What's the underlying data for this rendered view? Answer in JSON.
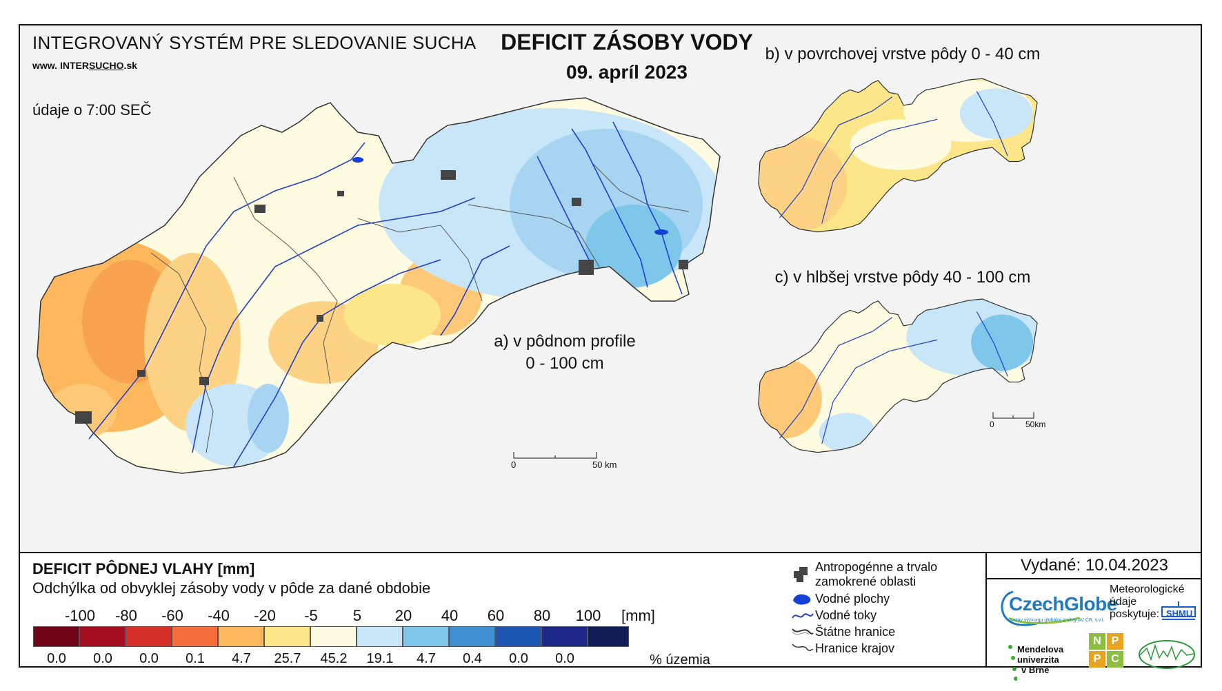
{
  "header": {
    "system_title": "INTEGROVANÝ SYSTÉM PRE SLEDOVANIE SUCHA",
    "website_prefix": "www. ",
    "website_inter": "INTER",
    "website_sucho": "SUCHO",
    "website_suffix": ".sk",
    "data_time": "údaje o 7:00 SEČ",
    "title": "DEFICIT ZÁSOBY VODY",
    "date": "09. apríl 2023"
  },
  "maps": {
    "a_label_line1": "a) v pôdnom profile",
    "a_label_line2": "0 - 100 cm",
    "b_label": "b) v povrchovej vrstve pôdy 0 - 40 cm",
    "c_label": "c) v hlbšej vrstve pôdy 40 - 100 cm",
    "scale_main": {
      "start": "0",
      "end": "50 km"
    },
    "scale_small": {
      "start": "0",
      "end": "50km"
    }
  },
  "legend": {
    "title": "DEFICIT PÔDNEJ VLAHY [mm]",
    "subtitle": "Odchýlka od obvyklej zásoby vody v pôde za dané obdobie",
    "bin_labels": [
      "-100",
      "-80",
      "-60",
      "-40",
      "-20",
      "-5",
      "5",
      "20",
      "40",
      "60",
      "80",
      "100"
    ],
    "unit": "[mm]",
    "colors": [
      "#6e0518",
      "#a50f22",
      "#d7302a",
      "#f46d3a",
      "#fdb85e",
      "#fde68a",
      "#fffbe0",
      "#c8e6f7",
      "#7ec6ea",
      "#3f8fd2",
      "#1f56b3",
      "#1e2a88",
      "#0f1f55"
    ],
    "percentages": [
      "0.0",
      "0.0",
      "0.0",
      "0.1",
      "4.7",
      "25.7",
      "45.2",
      "19.1",
      "4.7",
      "0.4",
      "0.0",
      "0.0"
    ],
    "percent_unit": "% územia"
  },
  "symbols": {
    "anthropogenic_line1": "Antropogénne a trvalo",
    "anthropogenic_line2": "zamokrené oblasti",
    "water_bodies": "Vodné plochy",
    "rivers": "Vodné toky",
    "borders": "Štátne hranice",
    "regions": "Hranice krajov"
  },
  "footer": {
    "issued": "Vydané: 10.04.2023",
    "czechglobe": "CzechGlobe",
    "czechglobe_sub": "Ústav výzkumu globální změny AV ČR, v.v.i.",
    "meteo_line1": "Meteorologické",
    "meteo_line2": "údaje",
    "meteo_line3": "poskytuje:",
    "shmu": "SHMU",
    "mendel_line1": "Mendelova",
    "mendel_line2": "univerzita",
    "mendel_line3": "v Brně",
    "nppc": [
      "N",
      "P",
      "P",
      "C"
    ]
  }
}
